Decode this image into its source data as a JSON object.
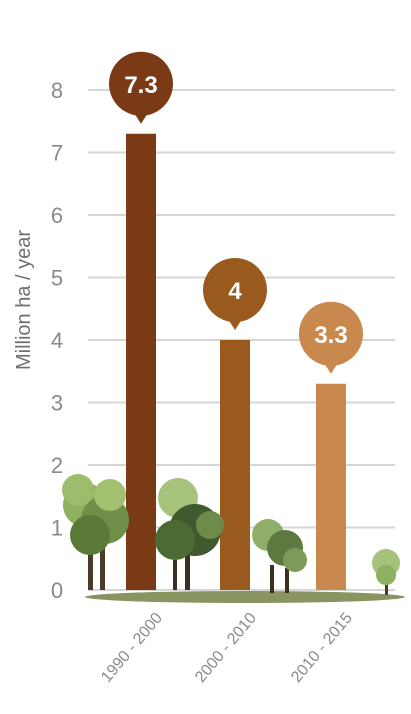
{
  "chart_data": {
    "type": "bar",
    "categories": [
      "1990 - 2000",
      "2000 - 2010",
      "2010 - 2015"
    ],
    "values": [
      7.3,
      4,
      3.3
    ],
    "data_labels": [
      "7.3",
      "4",
      "3.3"
    ],
    "title": "",
    "xlabel": "",
    "ylabel": "Million ha  / year",
    "ylim": [
      0,
      8
    ],
    "y_ticks": [
      0,
      1,
      2,
      3,
      4,
      5,
      6,
      7,
      8
    ],
    "grid": true,
    "legend": "none",
    "bar_colors": [
      "#7a3a16",
      "#9a5a1e",
      "#c8884e"
    ],
    "grid_color": "#d6d6d6",
    "decoration": "tree-silhouettes"
  }
}
